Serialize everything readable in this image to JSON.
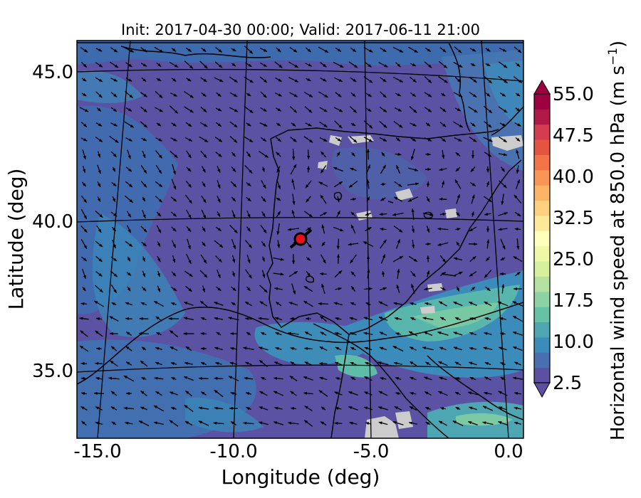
{
  "map": {
    "title": "Init: 2017-04-30 00:00; Valid: 2017-06-11 21:00",
    "xlabel": "Longitude (deg)",
    "ylabel": "Latitude (deg)",
    "lon_range": [
      -16.0,
      0.3
    ],
    "lat_range": [
      32.6,
      46.2
    ],
    "x_ticks": [
      "-15.0",
      "-10.0",
      "-5.0",
      "0.0"
    ],
    "x_tick_values": [
      -15.0,
      -10.0,
      -5.0,
      0.0
    ],
    "y_ticks": [
      "45.0",
      "40.0",
      "35.0"
    ],
    "y_tick_values": [
      45.0,
      40.0,
      35.0
    ],
    "marker": {
      "lon": -7.7,
      "lat": 39.35,
      "color": "#e8101a"
    }
  },
  "colorbar": {
    "label": "Horizontal wind speed at 850.0 hPa (m s",
    "label_exp": "−1",
    "label_close": ")",
    "ticks": [
      "55.0",
      "47.5",
      "40.0",
      "32.5",
      "25.0",
      "17.5",
      "10.0",
      "2.5"
    ],
    "tick_values": [
      55.0,
      47.5,
      40.0,
      32.5,
      25.0,
      17.5,
      10.0,
      2.5
    ],
    "vmin": 2.5,
    "vmax": 55.0,
    "colors": [
      "#5b50a1",
      "#4a6fb0",
      "#3b8cba",
      "#4ea6b3",
      "#66c2a5",
      "#8dd2a4",
      "#b4e0a2",
      "#d5ef9c",
      "#eef8a6",
      "#fefebd",
      "#fee89a",
      "#fed07f",
      "#fdb466",
      "#f99557",
      "#f4744a",
      "#e45440",
      "#d43d4f",
      "#b01a48",
      "#9e0142"
    ]
  }
}
